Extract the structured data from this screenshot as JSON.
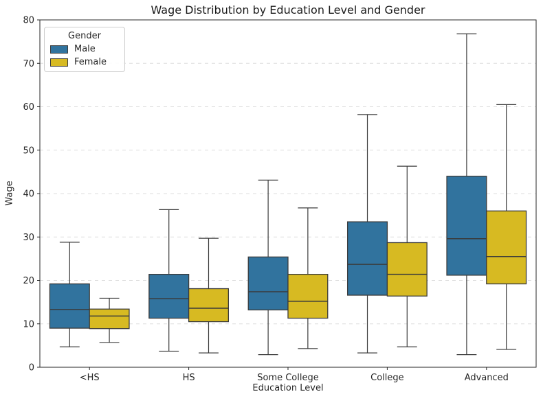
{
  "chart_data": {
    "type": "boxplot",
    "title": "Wage Distribution by Education Level and Gender",
    "xlabel": "Education Level",
    "ylabel": "Wage",
    "ylim": [
      0,
      80
    ],
    "yticks": [
      0,
      10,
      20,
      30,
      40,
      50,
      60,
      70,
      80
    ],
    "categories": [
      "<HS",
      "HS",
      "Some College",
      "College",
      "Advanced"
    ],
    "grid": "horizontal dashed",
    "legend": {
      "title": "Gender",
      "entries": [
        "Male",
        "Female"
      ],
      "position": "upper left"
    },
    "series": [
      {
        "name": "Male",
        "color": "#31739E",
        "boxes": [
          {
            "category": "<HS",
            "whislo": 4.7,
            "q1": 9.0,
            "med": 13.3,
            "q3": 19.2,
            "whishi": 28.8
          },
          {
            "category": "HS",
            "whislo": 3.7,
            "q1": 11.3,
            "med": 15.8,
            "q3": 21.4,
            "whishi": 36.3
          },
          {
            "category": "Some College",
            "whislo": 2.9,
            "q1": 13.2,
            "med": 17.4,
            "q3": 25.4,
            "whishi": 43.1
          },
          {
            "category": "College",
            "whislo": 3.3,
            "q1": 16.6,
            "med": 23.7,
            "q3": 33.5,
            "whishi": 58.2
          },
          {
            "category": "Advanced",
            "whislo": 2.9,
            "q1": 21.2,
            "med": 29.6,
            "q3": 44.0,
            "whishi": 76.8
          }
        ]
      },
      {
        "name": "Female",
        "color": "#D7BA22",
        "boxes": [
          {
            "category": "<HS",
            "whislo": 5.7,
            "q1": 8.9,
            "med": 11.8,
            "q3": 13.4,
            "whishi": 15.9
          },
          {
            "category": "HS",
            "whislo": 3.3,
            "q1": 10.5,
            "med": 13.6,
            "q3": 18.1,
            "whishi": 29.7
          },
          {
            "category": "Some College",
            "whislo": 4.3,
            "q1": 11.3,
            "med": 15.2,
            "q3": 21.4,
            "whishi": 36.7
          },
          {
            "category": "College",
            "whislo": 4.7,
            "q1": 16.4,
            "med": 21.4,
            "q3": 28.7,
            "whishi": 46.3
          },
          {
            "category": "Advanced",
            "whislo": 4.1,
            "q1": 19.2,
            "med": 25.5,
            "q3": 36.0,
            "whishi": 60.5
          }
        ]
      }
    ],
    "style": {
      "edge_color": "#3b3b3b",
      "grid_color": "#dddddd",
      "spine_color": "#262626",
      "tick_text_color": "#262626",
      "background": "#ffffff"
    }
  }
}
